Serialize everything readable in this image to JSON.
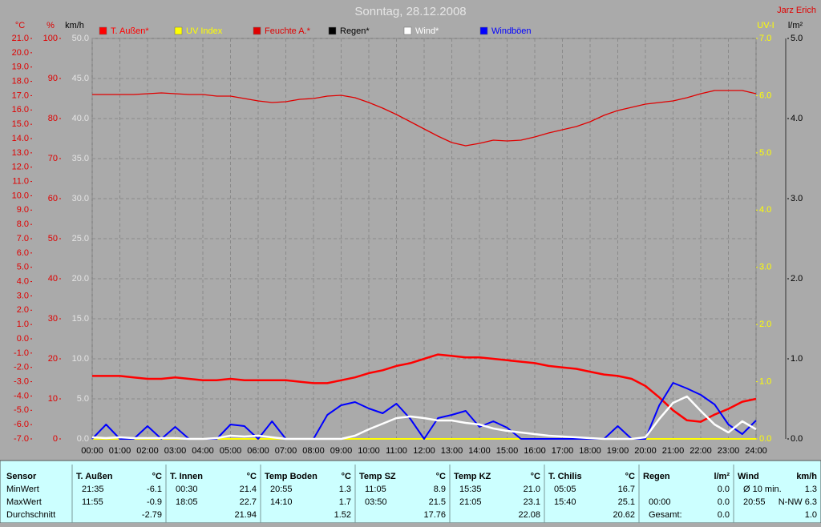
{
  "chart_data": {
    "type": "line",
    "title": "Sonntag, 28.12.2008",
    "author": "Jarz Erich",
    "grid": true,
    "x": [
      0,
      0.5,
      1,
      1.5,
      2,
      2.5,
      3,
      3.5,
      4,
      4.5,
      5,
      5.5,
      6,
      6.5,
      7,
      7.5,
      8,
      8.5,
      9,
      9.5,
      10,
      10.5,
      11,
      11.5,
      12,
      12.5,
      13,
      13.5,
      14,
      14.5,
      15,
      15.5,
      16,
      16.5,
      17,
      17.5,
      18,
      18.5,
      19,
      19.5,
      20,
      20.5,
      21,
      21.5,
      22,
      22.5,
      23,
      23.5,
      24
    ],
    "xlim": [
      0,
      24
    ],
    "xticks": [
      {
        "value": 0,
        "label": "00:00"
      },
      {
        "value": 1,
        "label": "01:00"
      },
      {
        "value": 2,
        "label": "02:00"
      },
      {
        "value": 3,
        "label": "03:00"
      },
      {
        "value": 4,
        "label": "04:00"
      },
      {
        "value": 5,
        "label": "05:00"
      },
      {
        "value": 6,
        "label": "06:00"
      },
      {
        "value": 7,
        "label": "07:00"
      },
      {
        "value": 8,
        "label": "08:00"
      },
      {
        "value": 9,
        "label": "09:00"
      },
      {
        "value": 10,
        "label": "10:00"
      },
      {
        "value": 11,
        "label": "11:00"
      },
      {
        "value": 12,
        "label": "12:00"
      },
      {
        "value": 13,
        "label": "13:00"
      },
      {
        "value": 14,
        "label": "14:00"
      },
      {
        "value": 15,
        "label": "15:00"
      },
      {
        "value": 16,
        "label": "16:00"
      },
      {
        "value": 17,
        "label": "17:00"
      },
      {
        "value": 18,
        "label": "18:00"
      },
      {
        "value": 19,
        "label": "19:00"
      },
      {
        "value": 20,
        "label": "20:00"
      },
      {
        "value": 21,
        "label": "21:00"
      },
      {
        "value": 22,
        "label": "22:00"
      },
      {
        "value": 23,
        "label": "23:00"
      },
      {
        "value": 24,
        "label": "24:00"
      }
    ],
    "axes": [
      {
        "label": "°C",
        "color": "#e00000",
        "lim": [
          -7,
          21
        ],
        "ticks": [
          {
            "value": 21,
            "label": "21.0"
          },
          {
            "value": 20,
            "label": "20.0"
          },
          {
            "value": 19,
            "label": "19.0"
          },
          {
            "value": 18,
            "label": "18.0"
          },
          {
            "value": 17,
            "label": "17.0"
          },
          {
            "value": 16,
            "label": "16.0"
          },
          {
            "value": 15,
            "label": "15.0"
          },
          {
            "value": 14,
            "label": "14.0"
          },
          {
            "value": 13,
            "label": "13.0"
          },
          {
            "value": 12,
            "label": "12.0"
          },
          {
            "value": 11,
            "label": "11.0"
          },
          {
            "value": 10,
            "label": "10.0"
          },
          {
            "value": 9,
            "label": "9.0"
          },
          {
            "value": 8,
            "label": "8.0"
          },
          {
            "value": 7,
            "label": "7.0"
          },
          {
            "value": 6,
            "label": "6.0"
          },
          {
            "value": 5,
            "label": "5.0"
          },
          {
            "value": 4,
            "label": "4.0"
          },
          {
            "value": 3,
            "label": "3.0"
          },
          {
            "value": 2,
            "label": "2.0"
          },
          {
            "value": 1,
            "label": "1.0"
          },
          {
            "value": 0,
            "label": "0.0"
          },
          {
            "value": -1,
            "label": "-1.0"
          },
          {
            "value": -2,
            "label": "-2.0"
          },
          {
            "value": -3,
            "label": "-3.0"
          },
          {
            "value": -4,
            "label": "-4.0"
          },
          {
            "value": -5,
            "label": "-5.0"
          },
          {
            "value": -6,
            "label": "-6.0"
          },
          {
            "value": -7,
            "label": "-7.0"
          }
        ]
      },
      {
        "label": "%",
        "color": "#e00000",
        "lim": [
          0,
          100
        ],
        "ticks": [
          100,
          90,
          80,
          70,
          60,
          50,
          40,
          30,
          20,
          10,
          0
        ]
      },
      {
        "label": "km/h",
        "color": "#e4e4e4",
        "lim": [
          0,
          50
        ],
        "ticks": [
          {
            "value": 50,
            "label": "50.0"
          },
          {
            "value": 45,
            "label": "45.0"
          },
          {
            "value": 40,
            "label": "40.0"
          },
          {
            "value": 35,
            "label": "35.0"
          },
          {
            "value": 30,
            "label": "30.0"
          },
          {
            "value": 25,
            "label": "25.0"
          },
          {
            "value": 20,
            "label": "20.0"
          },
          {
            "value": 15,
            "label": "15.0"
          },
          {
            "value": 10,
            "label": "10.0"
          },
          {
            "value": 5,
            "label": "5.0"
          },
          {
            "value": 0,
            "label": "0.0"
          }
        ]
      },
      {
        "label": "UV-I",
        "color": "#ffff00",
        "lim": [
          0,
          7
        ],
        "ticks": [
          {
            "value": 7,
            "label": "7.0"
          },
          {
            "value": 6,
            "label": "6.0"
          },
          {
            "value": 5,
            "label": "5.0"
          },
          {
            "value": 4,
            "label": "4.0"
          },
          {
            "value": 3,
            "label": "3.0"
          },
          {
            "value": 2,
            "label": "2.0"
          },
          {
            "value": 1,
            "label": "1.0"
          },
          {
            "value": 0,
            "label": "0.0"
          }
        ]
      },
      {
        "label": "l/m²",
        "color": "#000000",
        "lim": [
          0,
          5
        ],
        "ticks": [
          {
            "value": 5,
            "label": "5.0"
          },
          {
            "value": 4,
            "label": "4.0"
          },
          {
            "value": 3,
            "label": "3.0"
          },
          {
            "value": 2,
            "label": "2.0"
          },
          {
            "value": 1,
            "label": "1.0"
          },
          {
            "value": 0,
            "label": "0.0"
          }
        ]
      }
    ],
    "series": [
      {
        "name": "T. Außen*",
        "color": "#ff0000",
        "axis": 0,
        "width": 2.5,
        "values": [
          -2.6,
          -2.6,
          -2.6,
          -2.7,
          -2.8,
          -2.8,
          -2.7,
          -2.8,
          -2.9,
          -2.9,
          -2.8,
          -2.9,
          -2.9,
          -2.9,
          -2.9,
          -3.0,
          -3.1,
          -3.1,
          -2.9,
          -2.7,
          -2.4,
          -2.2,
          -1.9,
          -1.7,
          -1.4,
          -1.1,
          -1.2,
          -1.3,
          -1.3,
          -1.4,
          -1.5,
          -1.6,
          -1.7,
          -1.9,
          -2.0,
          -2.1,
          -2.3,
          -2.5,
          -2.6,
          -2.8,
          -3.3,
          -4.1,
          -5.0,
          -5.7,
          -5.8,
          -5.3,
          -4.9,
          -4.4,
          -4.2
        ]
      },
      {
        "name": "UV Index",
        "color": "#ffff00",
        "axis": 3,
        "width": 2,
        "values": [
          0,
          0,
          0,
          0,
          0,
          0,
          0,
          0,
          0,
          0,
          0,
          0,
          0,
          0,
          0,
          0,
          0,
          0,
          0,
          0,
          0,
          0,
          0,
          0,
          0,
          0,
          0,
          0,
          0,
          0,
          0,
          0,
          0,
          0,
          0,
          0,
          0,
          0,
          0,
          0,
          0,
          0,
          0,
          0,
          0,
          0,
          0,
          0,
          0
        ]
      },
      {
        "name": "Feuchte A.*",
        "color": "#e00000",
        "axis": 1,
        "width": 1.3,
        "values": [
          86,
          86,
          86,
          86,
          86.2,
          86.4,
          86.2,
          86,
          86,
          85.6,
          85.6,
          85,
          84.4,
          84,
          84.2,
          84.8,
          85,
          85.6,
          85.8,
          85.2,
          84,
          82.6,
          81,
          79.2,
          77.4,
          75.6,
          74,
          73.2,
          73.8,
          74.6,
          74.4,
          74.6,
          75.4,
          76.4,
          77.2,
          78,
          79.2,
          80.8,
          82,
          82.8,
          83.6,
          84,
          84.4,
          85.2,
          86.2,
          87,
          87,
          87,
          86.2
        ]
      },
      {
        "name": "Regen*",
        "color": "#000000",
        "axis": 4,
        "width": 1,
        "values": [
          0,
          0,
          0,
          0,
          0,
          0,
          0,
          0,
          0,
          0,
          0,
          0,
          0,
          0,
          0,
          0,
          0,
          0,
          0,
          0,
          0,
          0,
          0,
          0,
          0,
          0,
          0,
          0,
          0,
          0,
          0,
          0,
          0,
          0,
          0,
          0,
          0,
          0,
          0,
          0,
          0,
          0,
          0,
          0,
          0,
          0,
          0,
          0,
          0
        ]
      },
      {
        "name": "Wind*",
        "color": "#ffffff",
        "axis": 2,
        "width": 2.5,
        "values": [
          0.2,
          0.1,
          0.2,
          0.1,
          0.1,
          0.1,
          0.1,
          0,
          0,
          0.1,
          0.4,
          0.3,
          0.4,
          0.2,
          0,
          0,
          0,
          0,
          0,
          0.4,
          1.2,
          1.9,
          2.6,
          2.8,
          2.6,
          2.3,
          2.3,
          2.0,
          1.8,
          1.3,
          1.0,
          0.8,
          0.6,
          0.4,
          0.3,
          0.2,
          0.1,
          0,
          0,
          0,
          0.2,
          2.5,
          4.5,
          5.3,
          3.5,
          1.8,
          0.8,
          2.2,
          1.2
        ]
      },
      {
        "name": "Windböen",
        "color": "#0000ff",
        "axis": 2,
        "width": 2,
        "values": [
          0,
          1.8,
          0,
          0,
          1.6,
          0,
          1.5,
          0,
          0,
          0,
          1.8,
          1.6,
          0,
          2.2,
          0,
          0,
          0,
          3.0,
          4.2,
          4.6,
          3.8,
          3.2,
          4.4,
          2.5,
          0,
          2.6,
          3.0,
          3.5,
          1.5,
          2.2,
          1.4,
          0,
          0,
          0,
          0,
          0,
          0,
          0,
          1.6,
          0,
          0,
          4.2,
          7.0,
          6.3,
          5.5,
          4.3,
          1.8,
          0.6,
          2.3
        ]
      }
    ]
  },
  "stats": {
    "row_labels": [
      "Sensor",
      "MinWert",
      "MaxWert",
      "Durchschnitt"
    ],
    "columns": [
      {
        "header": "T. Außen",
        "unit": "°C",
        "rows": [
          [
            "21:35",
            "-6.1"
          ],
          [
            "11:55",
            "-0.9"
          ],
          [
            null,
            "-2.79"
          ]
        ]
      },
      {
        "header": "T. Innen",
        "unit": "°C",
        "rows": [
          [
            "00:30",
            "21.4"
          ],
          [
            "18:05",
            "22.7"
          ],
          [
            null,
            "21.94"
          ]
        ]
      },
      {
        "header": "Temp Boden",
        "unit": "°C",
        "rows": [
          [
            "20:55",
            "1.3"
          ],
          [
            "14:10",
            "1.7"
          ],
          [
            null,
            "1.52"
          ]
        ]
      },
      {
        "header": "Temp SZ",
        "unit": "°C",
        "rows": [
          [
            "11:05",
            "8.9"
          ],
          [
            "03:50",
            "21.5"
          ],
          [
            null,
            "17.76"
          ]
        ]
      },
      {
        "header": "Temp KZ",
        "unit": "°C",
        "rows": [
          [
            "15:35",
            "21.0"
          ],
          [
            "21:05",
            "23.1"
          ],
          [
            null,
            "22.08"
          ]
        ]
      },
      {
        "header": "T. Chilis",
        "unit": "°C",
        "rows": [
          [
            "05:05",
            "16.7"
          ],
          [
            "15:40",
            "25.1"
          ],
          [
            null,
            "20.62"
          ]
        ]
      },
      {
        "header": "Regen",
        "unit": "l/m²",
        "rows": [
          [
            null,
            "0.0"
          ],
          [
            "00:00",
            "0.0"
          ],
          [
            "Gesamt:",
            "0.0"
          ]
        ]
      },
      {
        "header": "Wind",
        "unit": "km/h",
        "rows": [
          [
            "Ø 10 min.",
            "1.3"
          ],
          [
            "20:55",
            "N-NW 6.3"
          ],
          [
            null,
            "1.0"
          ]
        ]
      }
    ]
  }
}
